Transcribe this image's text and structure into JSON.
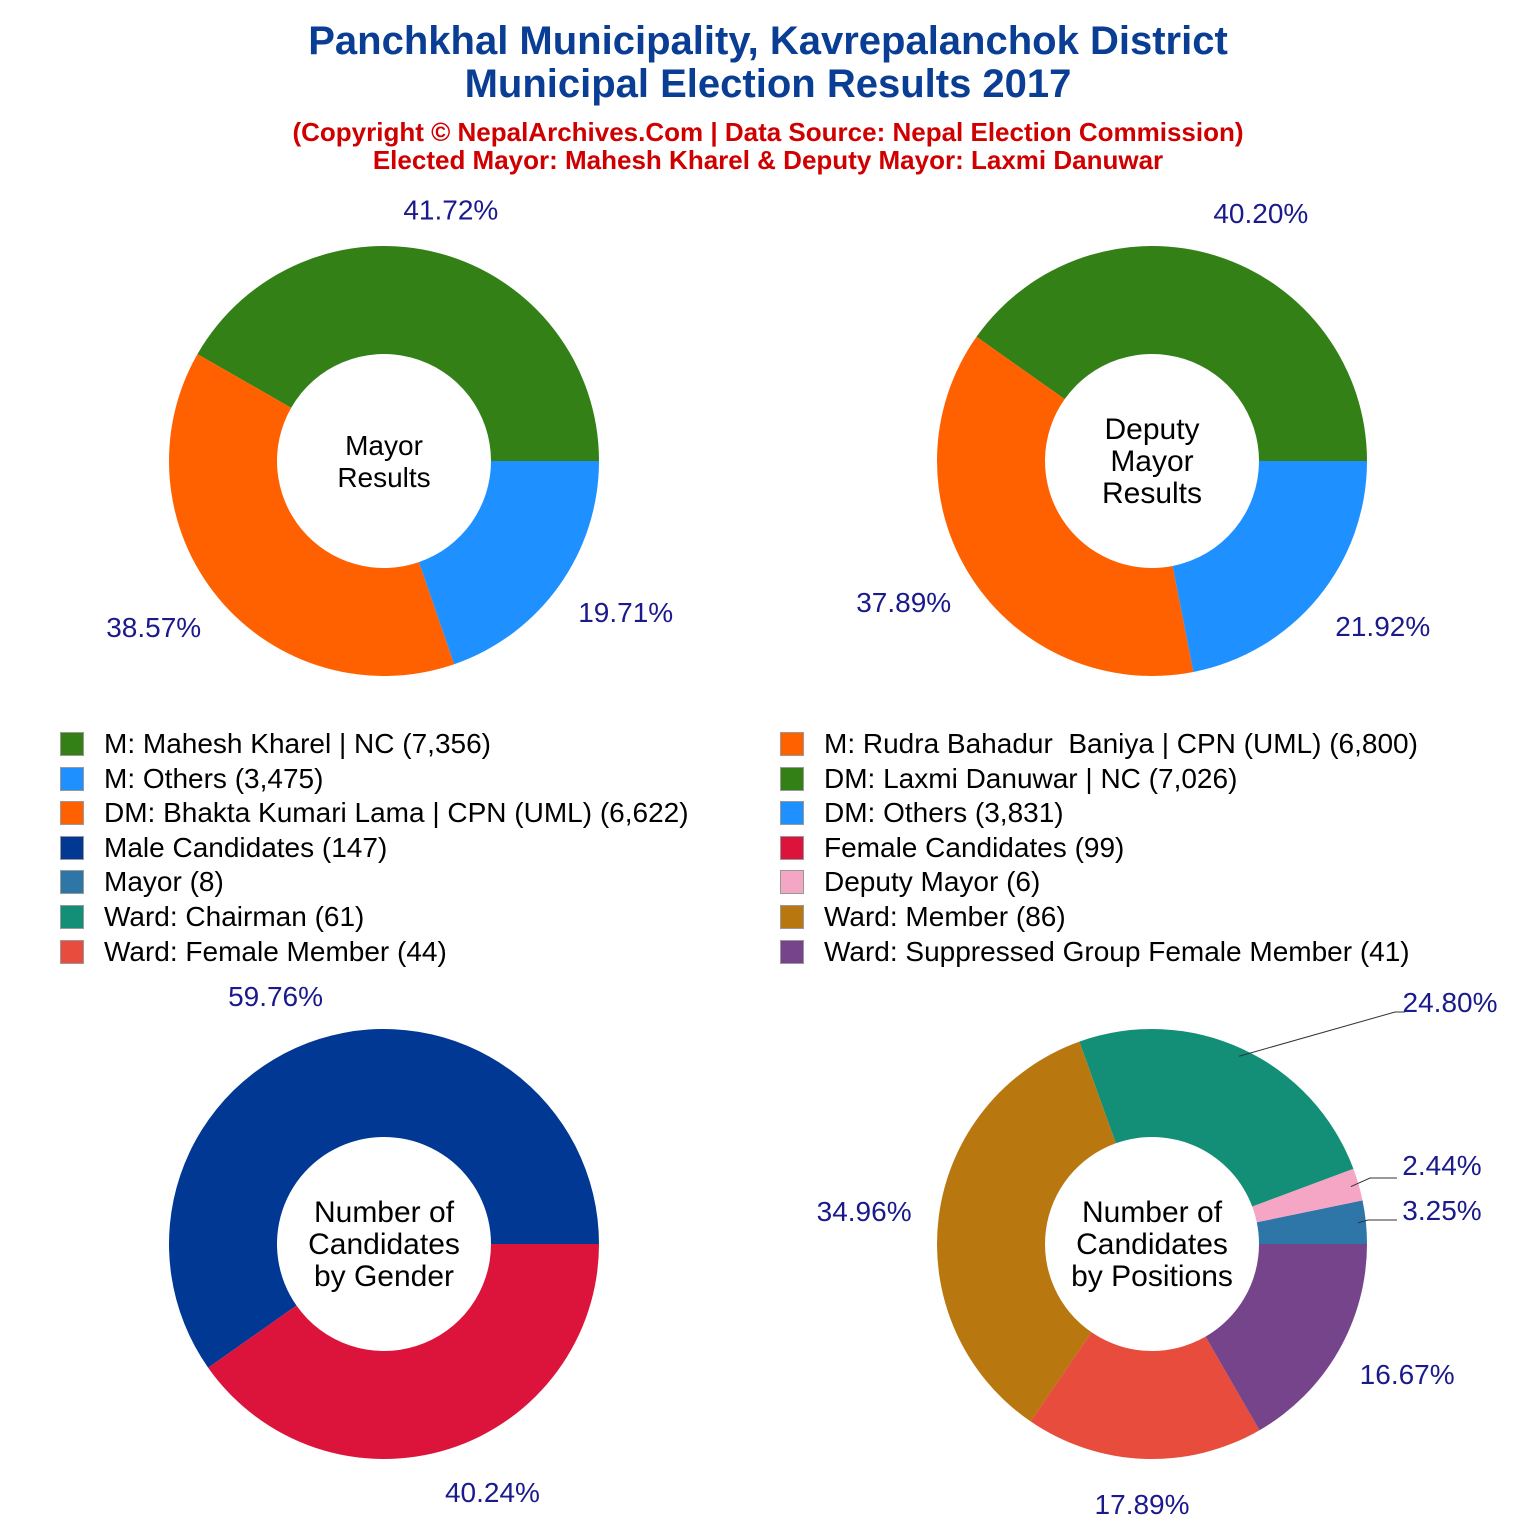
{
  "title_line1": "Panchkhal Municipality, Kavrepalanchok District",
  "title_line2": "Municipal Election Results 2017",
  "subtitle_line1": "(Copyright © NepalArchives.Com | Data Source: Nepal Election Commission)",
  "subtitle_line2": "Elected Mayor: Mahesh Kharel & Deputy Mayor: Laxmi Danuwar",
  "label_color": "#1a1a8c",
  "chart_data": [
    {
      "type": "pie",
      "donut": true,
      "center_label": [
        "Mayor",
        "Results"
      ],
      "categories": [
        "M: Mahesh Kharel | NC",
        "M: Rudra Bahadur  Baniya | CPN (UML)",
        "M: Others"
      ],
      "values": [
        7356,
        6800,
        3475
      ],
      "labels": [
        "41.72%",
        "38.57%",
        "19.71%"
      ],
      "colors": [
        "#338017",
        "#ff6100",
        "#1e90ff"
      ]
    },
    {
      "type": "pie",
      "donut": true,
      "center_label": [
        "Deputy",
        "Mayor",
        "Results"
      ],
      "categories": [
        "DM: Laxmi Danuwar | NC",
        "DM: Bhakta Kumari Lama | CPN (UML)",
        "DM: Others"
      ],
      "values": [
        7026,
        6622,
        3831
      ],
      "labels": [
        "40.20%",
        "37.89%",
        "21.92%"
      ],
      "colors": [
        "#338017",
        "#ff6100",
        "#1e90ff"
      ]
    },
    {
      "type": "pie",
      "donut": true,
      "center_label": [
        "Number of",
        "Candidates",
        "by Gender"
      ],
      "categories": [
        "Male Candidates",
        "Female Candidates"
      ],
      "values": [
        147,
        99
      ],
      "labels": [
        "59.76%",
        "40.24%"
      ],
      "colors": [
        "#003893",
        "#dc143c"
      ]
    },
    {
      "type": "pie",
      "donut": true,
      "center_label": [
        "Number of",
        "Candidates",
        "by Positions"
      ],
      "categories": [
        "Mayor",
        "Deputy Mayor",
        "Ward: Chairman",
        "Ward: Member",
        "Ward: Female Member",
        "Ward: Suppressed Group Female Member"
      ],
      "values": [
        8,
        6,
        61,
        86,
        44,
        41
      ],
      "labels": [
        "3.25%",
        "2.44%",
        "24.80%",
        "34.96%",
        "17.89%",
        "16.67%"
      ],
      "colors": [
        "#2e75a8",
        "#f4a6c4",
        "#148f77",
        "#b8770f",
        "#e74c3c",
        "#76448a"
      ]
    }
  ],
  "legend": [
    {
      "text": "M: Mahesh Kharel | NC (7,356)",
      "color": "#338017"
    },
    {
      "text": "M: Rudra Bahadur  Baniya | CPN (UML) (6,800)",
      "color": "#ff6100"
    },
    {
      "text": "M: Others (3,475)",
      "color": "#1e90ff"
    },
    {
      "text": "DM: Laxmi Danuwar | NC (7,026)",
      "color": "#338017"
    },
    {
      "text": "DM: Bhakta Kumari Lama | CPN (UML) (6,622)",
      "color": "#ff6100"
    },
    {
      "text": "DM: Others (3,831)",
      "color": "#1e90ff"
    },
    {
      "text": "Male Candidates (147)",
      "color": "#003893"
    },
    {
      "text": "Female Candidates (99)",
      "color": "#dc143c"
    },
    {
      "text": "Mayor (8)",
      "color": "#2e75a8"
    },
    {
      "text": "Deputy Mayor (6)",
      "color": "#f4a6c4"
    },
    {
      "text": "Ward: Chairman (61)",
      "color": "#148f77"
    },
    {
      "text": "Ward: Member (86)",
      "color": "#b8770f"
    },
    {
      "text": "Ward: Female Member (44)",
      "color": "#e74c3c"
    },
    {
      "text": "Ward: Suppressed Group Female Member (41)",
      "color": "#76448a"
    }
  ]
}
